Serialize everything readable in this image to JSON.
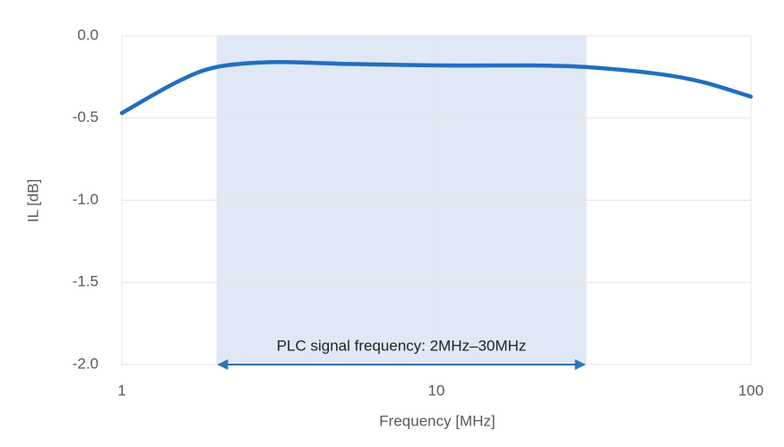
{
  "chart_data": {
    "type": "line",
    "xlabel": "Frequency [MHz]",
    "ylabel": "IL [dB]",
    "xscale": "log",
    "grid": true,
    "xlim": [
      1,
      100
    ],
    "xticks": [
      1,
      10,
      100
    ],
    "ylim": [
      -2.0,
      0.0
    ],
    "yticks": [
      {
        "value": 0,
        "label": "0.0"
      },
      -0.5,
      {
        "value": -1,
        "label": "-1.0"
      },
      -1.5,
      {
        "value": -2,
        "label": "-2.0"
      }
    ],
    "x": [
      1,
      1.5,
      2,
      3,
      5,
      10,
      20,
      30,
      50,
      70,
      100
    ],
    "series": [
      {
        "color": "#1f6fbf",
        "values": [
          -0.47,
          -0.28,
          -0.19,
          -0.16,
          -0.17,
          -0.18,
          -0.18,
          -0.19,
          -0.23,
          -0.28,
          -0.37
        ]
      }
    ],
    "highlight": {
      "x": [
        2,
        30
      ],
      "label": "PLC signal frequency: 2MHz–30MHz",
      "color": "#dae3f3",
      "arrow_color": "#2e75b6"
    }
  }
}
